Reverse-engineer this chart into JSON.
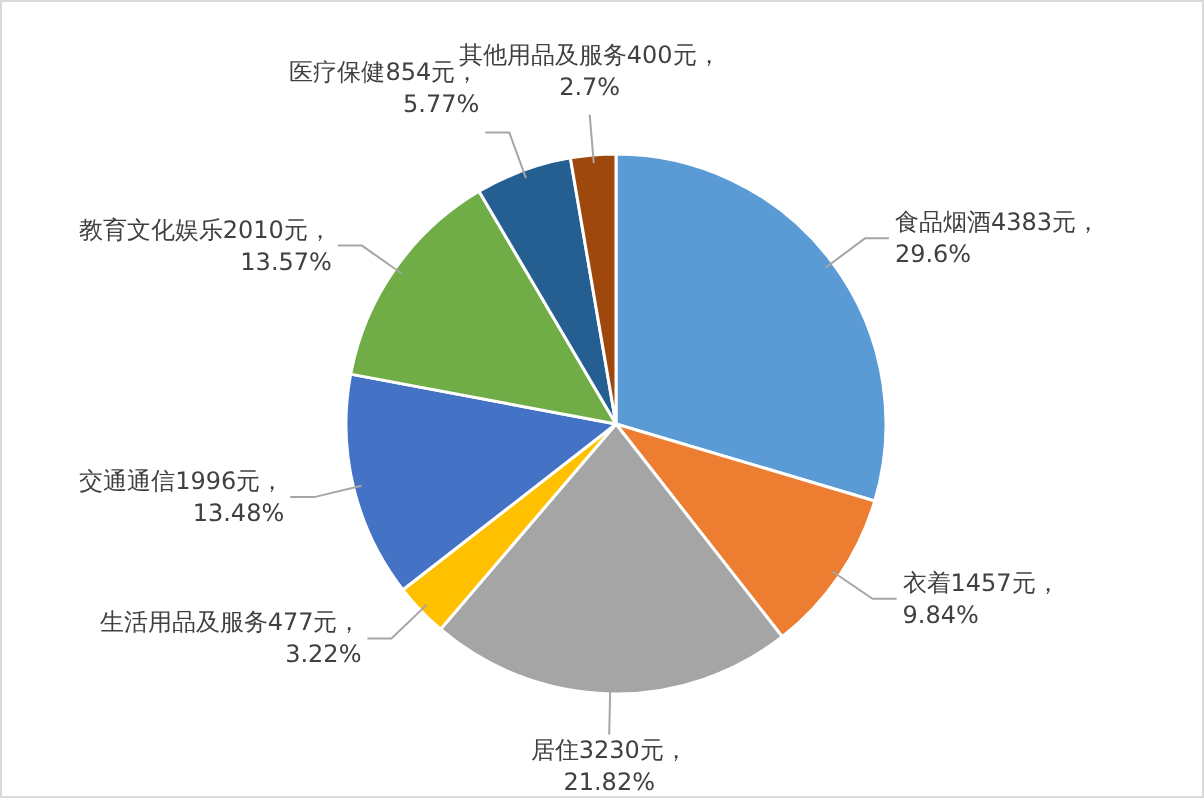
{
  "chart_data": {
    "type": "pie",
    "categories": [
      "食品烟酒",
      "衣着",
      "居住",
      "生活用品及服务",
      "交通通信",
      "教育文化娱乐",
      "医疗保健",
      "其他用品及服务"
    ],
    "values": [
      4383,
      1457,
      3230,
      477,
      1996,
      2010,
      854,
      400
    ],
    "value_labels": [
      "4383元，29.6%",
      "1457元，9.84%",
      "3230元，21.82%",
      "477元，3.22%",
      "1996元，13.48%",
      "2010元，13.57%",
      "854元，5.77%",
      "400元，2.7%"
    ],
    "colors": [
      "#5b9bd5",
      "#ed7d31",
      "#a5a5a5",
      "#ffc000",
      "#4472c4",
      "#70ad47",
      "#255e91",
      "#9e480e"
    ]
  }
}
